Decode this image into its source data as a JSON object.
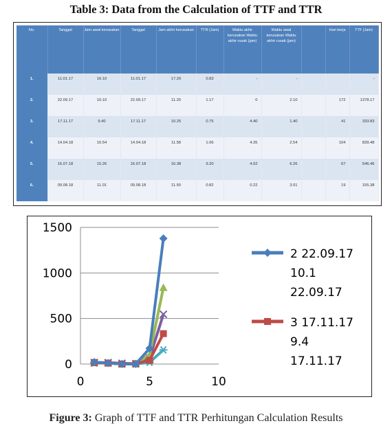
{
  "table": {
    "caption": "Table 3: Data from the Calculation of TTF and TTR",
    "headers": [
      "No.",
      "Tanggal",
      "Jam awal kerusakan",
      "Tanggal",
      "Jam akhir kerusakan",
      "TTR (Jam)",
      "Waktu akhir kerusakan Waktu akhir rusak (jam)",
      "Waktu awal kerusakan Waktu akhir rusak (jam)",
      "",
      "Hari kerja",
      "TTF (Jam)"
    ],
    "rows": [
      [
        "1.",
        "11.01.17",
        "16.10",
        "11.01.17",
        "17.20",
        "0.83",
        "-",
        "-",
        "",
        "",
        "-"
      ],
      [
        "2.",
        "22.09.17",
        "10.10",
        "22.09.17",
        "11.20",
        "1.17",
        "0",
        "2.10",
        "",
        "172",
        "1378.17"
      ],
      [
        "3.",
        "17.11.17",
        "9.40",
        "17.11.17",
        "10.25",
        "0.75",
        "4.40",
        "1.40",
        "",
        "41",
        "333.83"
      ],
      [
        "4.",
        "14.04.18",
        "10.54",
        "14.04.18",
        "11.58",
        "1.06",
        "4.35",
        "2.54",
        "",
        "104",
        "839.48"
      ],
      [
        "5.",
        "16.07.18",
        "15.26",
        "16.07.18",
        "16.38",
        "9.20",
        "4.02",
        "6.26",
        "",
        "67",
        "546.46"
      ],
      [
        "6.",
        "09.08.18",
        "11.01",
        "09.08.18",
        "11.50",
        "0.82",
        "0.22",
        "3.01",
        "",
        "19",
        "155.38"
      ]
    ]
  },
  "chart_data": {
    "type": "line",
    "xlim": [
      0,
      10
    ],
    "ylim": [
      0,
      1500
    ],
    "xticks": [
      0,
      5,
      10
    ],
    "yticks": [
      0,
      500,
      1000,
      1500
    ],
    "grid": "horizontal",
    "legend_position": "right",
    "legend_entries": [
      {
        "lines": [
          "2 22.09.17",
          "10.1",
          "22.09.17"
        ],
        "color": "#4a7ebb",
        "marker": "diamond"
      },
      {
        "lines": [
          "3 17.11.17",
          "9.4",
          "17.11.17"
        ],
        "color": "#be4b48",
        "marker": "square"
      }
    ],
    "series": [
      {
        "color": "#4a7ebb",
        "marker": "diamond",
        "x": [
          1,
          2,
          3,
          4,
          5,
          6
        ],
        "y": [
          22.09,
          11.2,
          1.17,
          0,
          172,
          1378.17
        ]
      },
      {
        "color": "#be4b48",
        "marker": "square",
        "x": [
          1,
          2,
          3,
          4,
          5,
          6
        ],
        "y": [
          17.11,
          10.25,
          0.75,
          4.4,
          41,
          333.83
        ]
      },
      {
        "color": "#98b954",
        "marker": "triangle",
        "x": [
          1,
          2,
          3,
          4,
          5,
          6
        ],
        "y": [
          14.04,
          11.58,
          1.06,
          4.35,
          104,
          839.48
        ]
      },
      {
        "color": "#7d60a0",
        "marker": "x",
        "x": [
          1,
          2,
          3,
          4,
          5,
          6
        ],
        "y": [
          16.07,
          16.38,
          9.2,
          4.02,
          67,
          546.46
        ]
      },
      {
        "color": "#46aac5",
        "marker": "star",
        "x": [
          1,
          2,
          3,
          4,
          5,
          6
        ],
        "y": [
          9.08,
          11.5,
          0.82,
          0.22,
          19,
          155.38
        ]
      }
    ]
  },
  "figure": {
    "label": "Figure 3:",
    "caption": " Graph of TTF and TTR Perhitungan Calculation Results"
  }
}
